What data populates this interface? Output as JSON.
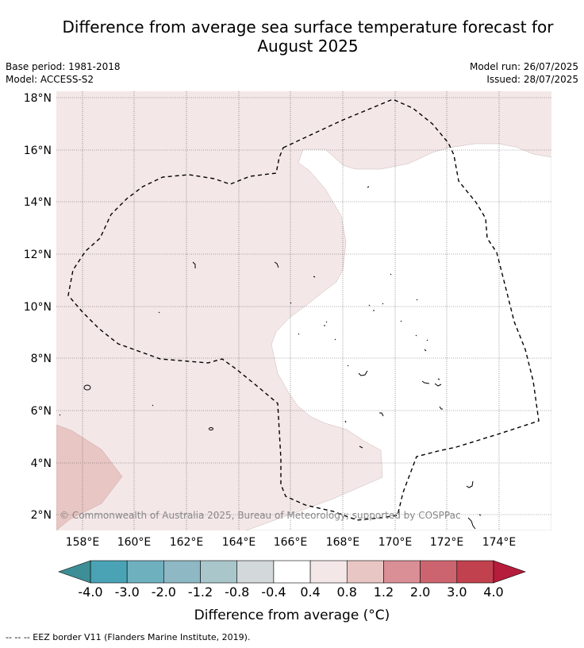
{
  "title_line1": "Difference from average sea surface temperature forecast for",
  "title_line2": "August 2025",
  "base_period": "Base period: 1981-2018",
  "model": "Model: ACCESS-S2",
  "model_run": "Model run: 26/07/2025",
  "issued": "Issued: 28/07/2025",
  "copyright": "© Commonwealth of Australia 2025, Bureau of Meteorology; supported by COSPPac",
  "map": {
    "lat_labels": [
      "18°N",
      "16°N",
      "14°N",
      "12°N",
      "10°N",
      "8°N",
      "6°N",
      "4°N",
      "2°N"
    ],
    "lon_labels": [
      "158°E",
      "160°E",
      "162°E",
      "164°E",
      "166°E",
      "168°E",
      "170°E",
      "172°E",
      "174°E"
    ]
  },
  "colorbar": {
    "label": "Difference from average (°C)",
    "ticks": [
      "-4.0",
      "-3.0",
      "-2.0",
      "-1.2",
      "-0.8",
      "-0.4",
      "0.4",
      "0.8",
      "1.2",
      "2.0",
      "3.0",
      "4.0"
    ],
    "colors": [
      "#4aa3b5",
      "#6fb0bf",
      "#8db8c4",
      "#a9c6cb",
      "#d3d8da",
      "#ffffff",
      "#f4e7e7",
      "#e8c6c3",
      "#da8e96",
      "#cc6470",
      "#c2414f"
    ],
    "under_color": "#3d8e96",
    "over_color": "#b61c3c"
  },
  "footnote": "--  --  -- EEZ border V11 (Flanders Marine Institute, 2019)."
}
